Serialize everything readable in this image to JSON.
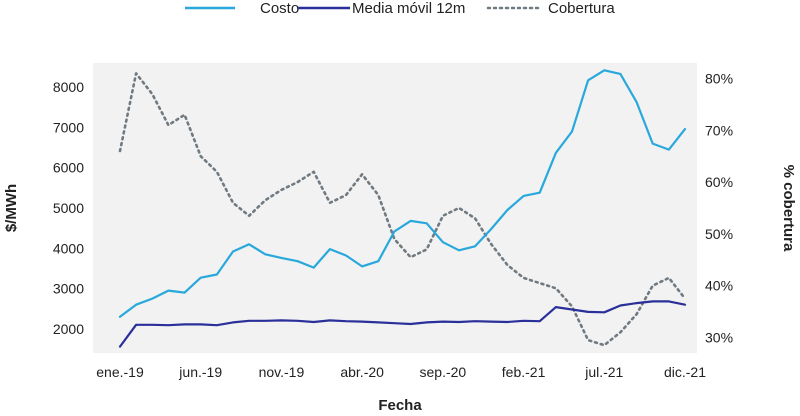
{
  "chart_data": {
    "type": "line",
    "title": "",
    "xlabel": "Fecha",
    "ylabel": "$/MWh",
    "y2label": "% cobertura",
    "ylim": [
      1400,
      8600
    ],
    "y2lim": [
      0.27,
      0.83
    ],
    "yticks": [
      2000,
      3000,
      4000,
      5000,
      6000,
      7000,
      8000
    ],
    "y2ticks": [
      0.3,
      0.4,
      0.5,
      0.6,
      0.7,
      0.8
    ],
    "y2tick_labels": [
      "30%",
      "40%",
      "50%",
      "60%",
      "70%",
      "80%"
    ],
    "x_tick_labels": [
      "ene.-19",
      "jun.-19",
      "nov.-19",
      "abr.-20",
      "sep.-20",
      "feb.-21",
      "jul.-21",
      "dic.-21"
    ],
    "x_tick_index": [
      0,
      5,
      10,
      15,
      20,
      25,
      30,
      35
    ],
    "grid": false,
    "legend_position": "top",
    "colors": {
      "costo": "#29a8dc",
      "media": "#2a2f9a",
      "cobertura": "#707a80"
    },
    "series": [
      {
        "name": "Costo",
        "axis": "left",
        "style": "solid",
        "values": [
          2300,
          2600,
          2750,
          2950,
          2900,
          3270,
          3350,
          3920,
          4100,
          3850,
          3760,
          3680,
          3520,
          3980,
          3820,
          3550,
          3680,
          4420,
          4680,
          4620,
          4150,
          3950,
          4050,
          4480,
          4950,
          5300,
          5380,
          6370,
          6900,
          8170,
          8420,
          8330,
          7630,
          6600,
          6450,
          6960
        ]
      },
      {
        "name": "Media móvil 12m",
        "axis": "left",
        "style": "solid",
        "values": [
          1560,
          2100,
          2100,
          2090,
          2110,
          2110,
          2090,
          2160,
          2200,
          2200,
          2210,
          2200,
          2170,
          2210,
          2190,
          2180,
          2160,
          2140,
          2120,
          2160,
          2180,
          2170,
          2190,
          2180,
          2170,
          2200,
          2190,
          2540,
          2480,
          2420,
          2410,
          2580,
          2640,
          2680,
          2680,
          2600
        ]
      },
      {
        "name": "Cobertura",
        "axis": "right",
        "style": "dotted",
        "values": [
          0.66,
          0.81,
          0.77,
          0.71,
          0.73,
          0.65,
          0.62,
          0.56,
          0.535,
          0.565,
          0.585,
          0.6,
          0.62,
          0.56,
          0.575,
          0.615,
          0.575,
          0.49,
          0.455,
          0.47,
          0.535,
          0.55,
          0.53,
          0.48,
          0.44,
          0.415,
          0.405,
          0.395,
          0.36,
          0.295,
          0.285,
          0.31,
          0.345,
          0.4,
          0.415,
          0.375
        ]
      }
    ]
  }
}
